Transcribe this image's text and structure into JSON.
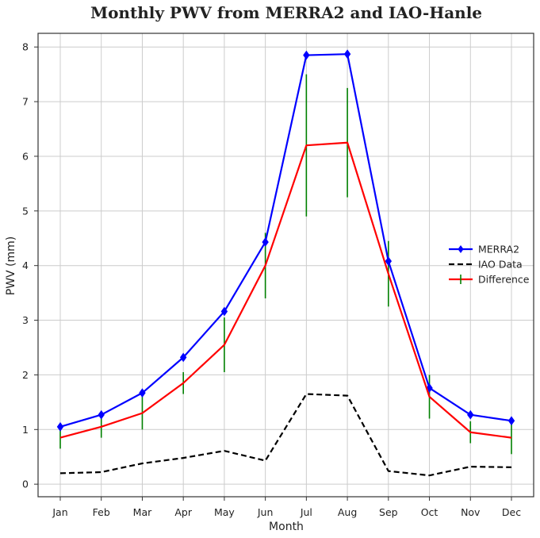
{
  "chart_data": {
    "type": "line",
    "title": "Monthly PWV from MERRA2 and IAO-Hanle",
    "xlabel": "Month",
    "ylabel": "PWV (mm)",
    "categories": [
      "Jan",
      "Feb",
      "Mar",
      "Apr",
      "May",
      "Jun",
      "Jul",
      "Aug",
      "Sep",
      "Oct",
      "Nov",
      "Dec"
    ],
    "ylim": [
      -0.23,
      8.25
    ],
    "yticks": [
      0,
      1,
      2,
      3,
      4,
      5,
      6,
      7,
      8
    ],
    "grid": true,
    "legend_position": "right",
    "series": [
      {
        "name": "MERRA2",
        "color": "#0000ff",
        "style": "solid",
        "marker": "diamond",
        "values": [
          1.05,
          1.27,
          1.67,
          2.32,
          3.16,
          4.43,
          7.85,
          7.87,
          4.08,
          1.76,
          1.27,
          1.16
        ]
      },
      {
        "name": "IAO Data",
        "color": "#000000",
        "style": "dashed",
        "marker": "none",
        "values": [
          0.2,
          0.22,
          0.38,
          0.48,
          0.61,
          0.43,
          1.65,
          1.62,
          0.24,
          0.16,
          0.32,
          0.31
        ]
      },
      {
        "name": "Difference",
        "color": "#ff0000",
        "style": "solid",
        "marker": "none",
        "values": [
          0.85,
          1.05,
          1.3,
          1.85,
          2.55,
          4.0,
          6.2,
          6.25,
          3.85,
          1.6,
          0.95,
          0.85
        ],
        "error_color": "#008000",
        "errors": [
          0.2,
          0.2,
          0.3,
          0.2,
          0.5,
          0.6,
          1.3,
          1.0,
          0.6,
          0.4,
          0.2,
          0.3
        ]
      }
    ]
  }
}
